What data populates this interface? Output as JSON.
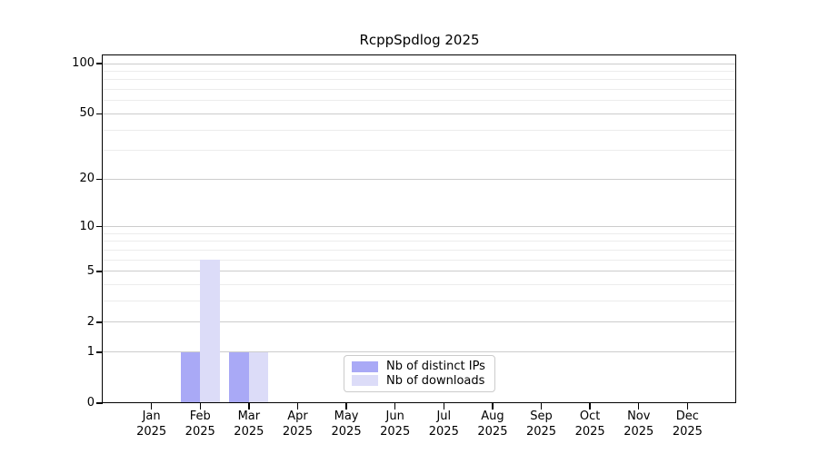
{
  "chart_data": {
    "type": "bar",
    "title": "RcppSpdlog 2025",
    "categories": [
      "Jan 2025",
      "Feb 2025",
      "Mar 2025",
      "Apr 2025",
      "May 2025",
      "Jun 2025",
      "Jul 2025",
      "Aug 2025",
      "Sep 2025",
      "Oct 2025",
      "Nov 2025",
      "Dec 2025"
    ],
    "x_ticks": [
      {
        "month": "Jan",
        "year": "2025"
      },
      {
        "month": "Feb",
        "year": "2025"
      },
      {
        "month": "Mar",
        "year": "2025"
      },
      {
        "month": "Apr",
        "year": "2025"
      },
      {
        "month": "May",
        "year": "2025"
      },
      {
        "month": "Jun",
        "year": "2025"
      },
      {
        "month": "Jul",
        "year": "2025"
      },
      {
        "month": "Aug",
        "year": "2025"
      },
      {
        "month": "Sep",
        "year": "2025"
      },
      {
        "month": "Oct",
        "year": "2025"
      },
      {
        "month": "Nov",
        "year": "2025"
      },
      {
        "month": "Dec",
        "year": "2025"
      }
    ],
    "series": [
      {
        "name": "Nb of distinct IPs",
        "color": "#a9a9f6",
        "values": [
          0,
          1,
          1,
          0,
          0,
          0,
          0,
          0,
          0,
          0,
          0,
          0
        ]
      },
      {
        "name": "Nb of downloads",
        "color": "#dcdcf8",
        "values": [
          0,
          6,
          1,
          0,
          0,
          0,
          0,
          0,
          0,
          0,
          0,
          0
        ]
      }
    ],
    "y_axis": {
      "scale": "log1p",
      "tick_labels": [
        "0",
        "1",
        "2",
        "5",
        "10",
        "20",
        "50",
        "100"
      ],
      "tick_values": [
        0,
        1,
        2,
        5,
        10,
        20,
        50,
        100
      ],
      "minor_gridline_values": [
        3,
        4,
        6,
        7,
        8,
        9,
        30,
        40,
        60,
        70,
        80,
        90
      ],
      "ylim": [
        0,
        112
      ]
    },
    "legend": {
      "position": "lower center",
      "entries": [
        "Nb of distinct IPs",
        "Nb of downloads"
      ]
    },
    "xlabel": "",
    "ylabel": "",
    "grid": "horizontal",
    "colors": {
      "bar_distinct_ips": "#a9a9f6",
      "bar_downloads": "#dcdcf8",
      "major_grid": "#cccccc",
      "minor_grid": "#ececec",
      "axis": "#000000",
      "background": "#ffffff",
      "legend_border": "#cbcbcb"
    }
  }
}
